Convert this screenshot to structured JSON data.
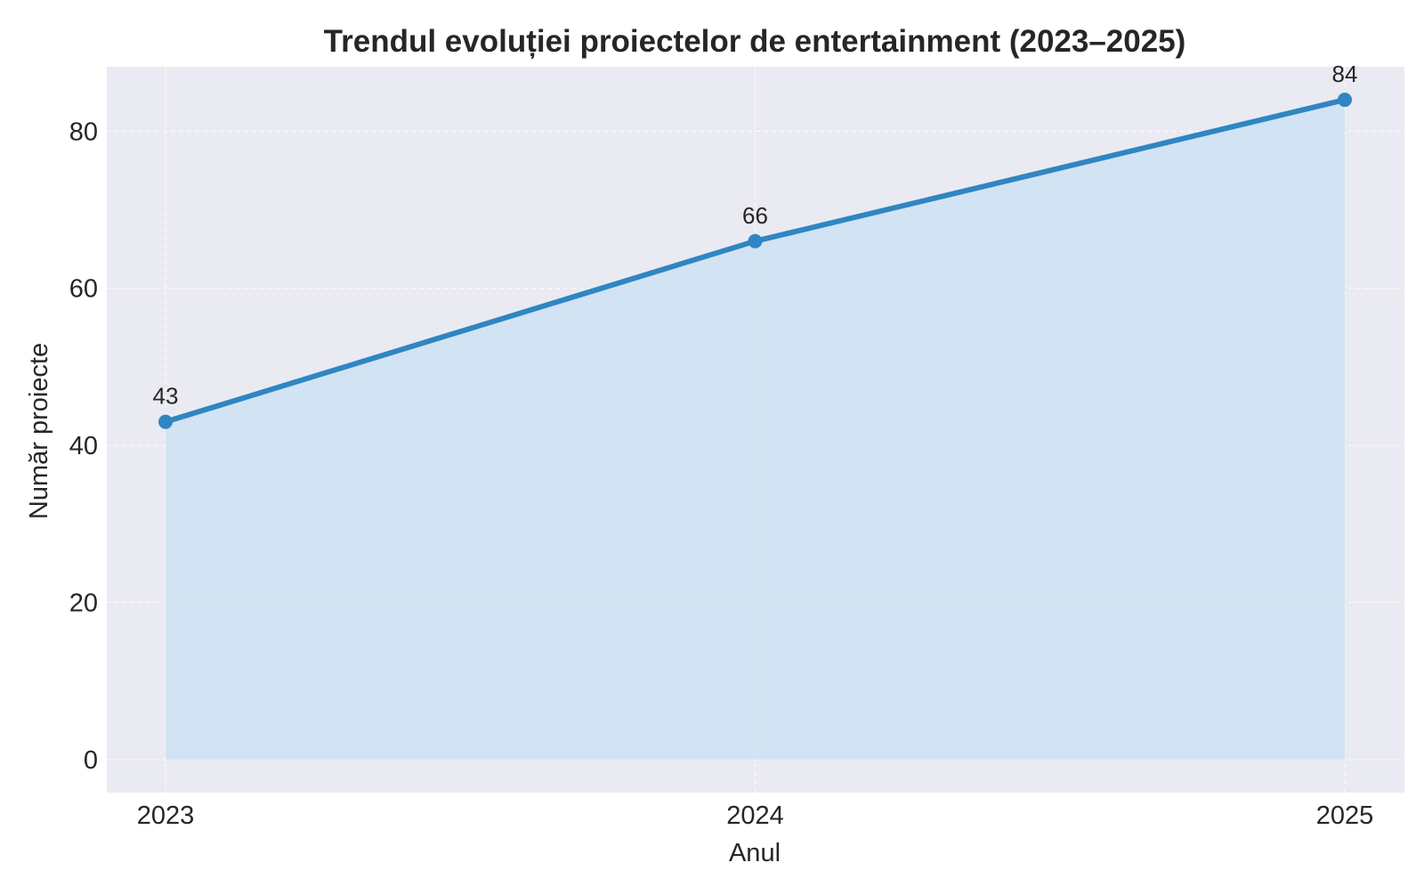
{
  "chart_data": {
    "type": "area",
    "title": "Trendul evoluției proiectelor de entertainment (2023–2025)",
    "xlabel": "Anul",
    "ylabel": "Număr proiecte",
    "categories": [
      "2023",
      "2024",
      "2025"
    ],
    "values": [
      43,
      66,
      84
    ],
    "data_labels": [
      "43",
      "66",
      "84"
    ],
    "yticks": [
      0,
      20,
      40,
      60,
      80
    ],
    "ytick_labels": [
      "0",
      "20",
      "40",
      "60",
      "80"
    ],
    "ylim": [
      -4.2,
      88.2
    ],
    "grid": true,
    "colors": {
      "line": "#2f86c2",
      "fill": "#cfe2f3",
      "plot_bg": "#eaeaf2"
    }
  }
}
